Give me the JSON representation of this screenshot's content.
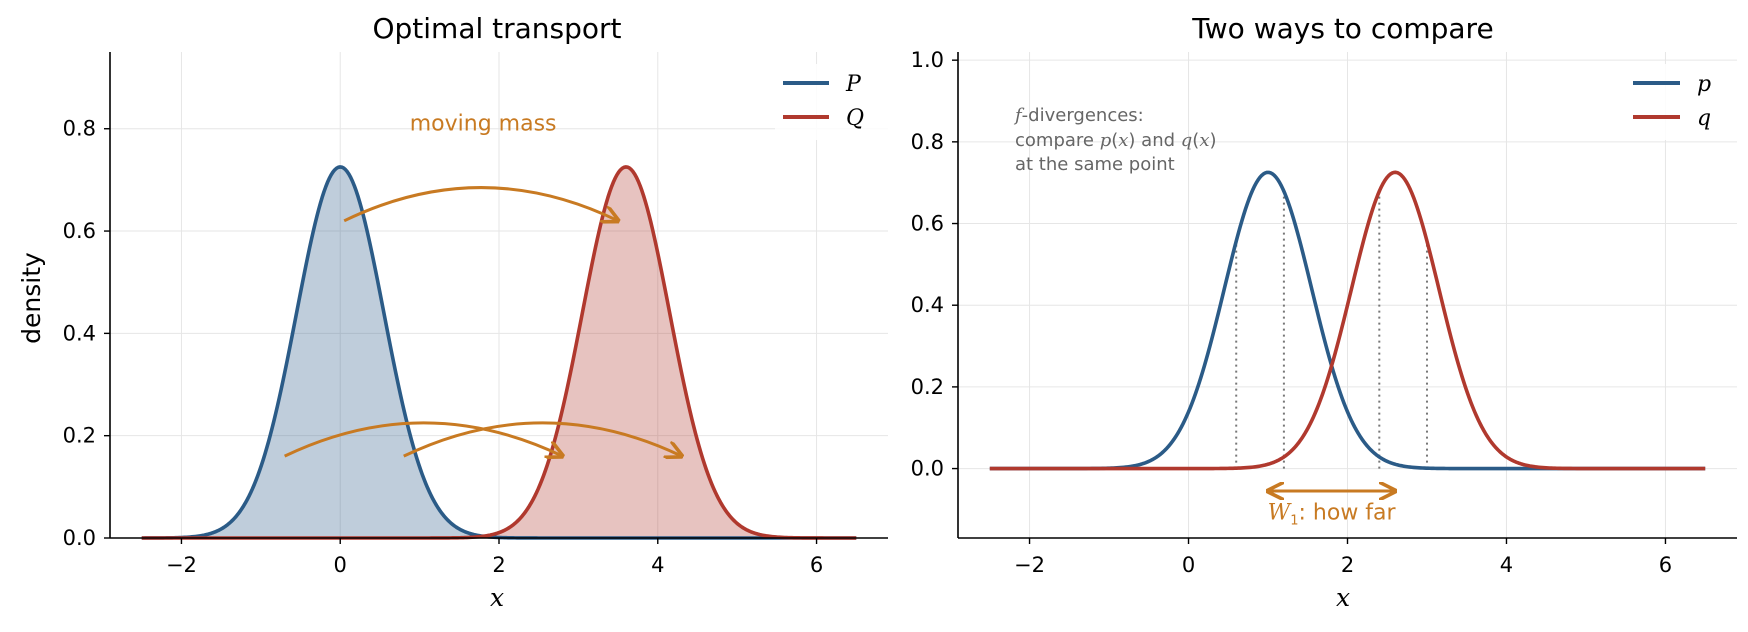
{
  "colors": {
    "p": "#2b5b87",
    "q": "#b0392e",
    "accent": "#c87a22",
    "note": "#666666"
  },
  "chart_data": [
    {
      "type": "area",
      "title": "Optimal transport",
      "xlabel": "x",
      "ylabel": "density",
      "xlim": [
        -2.9,
        6.9
      ],
      "ylim": [
        0,
        0.95
      ],
      "xticks": [
        "−2",
        "0",
        "2",
        "4",
        "6"
      ],
      "xtick_values": [
        -2,
        0,
        2,
        4,
        6
      ],
      "yticks": [
        "0.0",
        "0.2",
        "0.4",
        "0.6",
        "0.8"
      ],
      "ytick_values": [
        0,
        0.2,
        0.4,
        0.6,
        0.8
      ],
      "grid": true,
      "legend_position": "top-right",
      "series": [
        {
          "name": "P",
          "distribution": "normal",
          "mean": 0.0,
          "sd": 0.55,
          "x_range": [
            -2.5,
            6.5
          ],
          "fill": true
        },
        {
          "name": "Q",
          "distribution": "normal",
          "mean": 3.6,
          "sd": 0.55,
          "x_range": [
            -2.5,
            6.5
          ],
          "fill": true
        }
      ],
      "arrows": [
        {
          "from": [
            0.05,
            0.62
          ],
          "to": [
            3.5,
            0.62
          ],
          "peak_y": 0.685
        },
        {
          "from": [
            -0.7,
            0.16
          ],
          "to": [
            2.8,
            0.16
          ],
          "peak_y": 0.225
        },
        {
          "from": [
            0.8,
            0.16
          ],
          "to": [
            4.3,
            0.16
          ],
          "peak_y": 0.225
        }
      ],
      "annotation": {
        "text": "moving mass",
        "x": 1.8,
        "y": 0.8
      }
    },
    {
      "type": "line",
      "title": "Two ways to compare",
      "xlabel": "x",
      "ylabel": "",
      "xlim": [
        -2.9,
        6.9
      ],
      "ylim": [
        -0.17,
        1.02
      ],
      "xticks": [
        "−2",
        "0",
        "2",
        "4",
        "6"
      ],
      "xtick_values": [
        -2,
        0,
        2,
        4,
        6
      ],
      "yticks": [
        "0.0",
        "0.2",
        "0.4",
        "0.6",
        "0.8",
        "1.0"
      ],
      "ytick_values": [
        0,
        0.2,
        0.4,
        0.6,
        0.8,
        1.0
      ],
      "grid": true,
      "legend_position": "top-right",
      "series": [
        {
          "name": "p",
          "distribution": "normal",
          "mean": 1.0,
          "sd": 0.55,
          "x_range": [
            -2.5,
            6.5
          ]
        },
        {
          "name": "q",
          "distribution": "normal",
          "mean": 2.6,
          "sd": 0.55,
          "x_range": [
            -2.5,
            6.5
          ]
        }
      ],
      "vlines_x": [
        0.6,
        1.2,
        2.4,
        3.0
      ],
      "note_lines": [
        "f-divergences:",
        "compare p(x) and q(x)",
        "at the same point"
      ],
      "w1_arrow": {
        "x_from": 1.0,
        "x_to": 2.6,
        "y": -0.055
      },
      "w1_label": "W1: how far",
      "w1_label_y": -0.115
    }
  ]
}
